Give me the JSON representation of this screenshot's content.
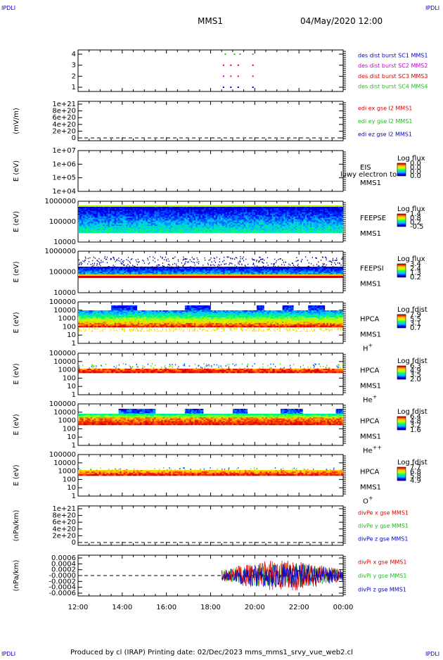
{
  "header": {
    "corner_tl": "IPDLI",
    "corner_tr": "IPDLI",
    "corner_bl": "IPDLI",
    "corner_br": "IPDLI",
    "spacecraft": "MMS1",
    "datetime": "04/May/2020 12:00"
  },
  "footer": {
    "text": "Produced by cl (IRAP)   Printing date: 02/Dec/2023   mms_mms1_srvy_vue_web2.cl"
  },
  "colors": {
    "blue": "#0000cc",
    "red": "#dd0000",
    "green": "#22bb22",
    "magenta": "#cc00cc"
  },
  "chart_data": [
    {
      "id": "burst",
      "type": "scatter",
      "xlim": [
        "12:00",
        "00:00"
      ],
      "ylim": [
        0.5,
        4.5
      ],
      "yticks": [
        "4",
        "3",
        "2",
        "1"
      ],
      "ylabel": "",
      "legend": [
        {
          "text": "des dist burst SC1 MMS1",
          "color": "#0000cc"
        },
        {
          "text": "des dist burst SC2 MMS2",
          "color": "#cc00cc"
        },
        {
          "text": "des dist burst SC3 MMS3",
          "color": "#dd0000"
        },
        {
          "text": "des dist burst SC4 MMS4",
          "color": "#22bb22"
        }
      ],
      "series": [
        {
          "level": 4,
          "color": "#22bb22",
          "x": [
            "18:40",
            "19:05",
            "19:20",
            "19:55"
          ]
        },
        {
          "level": 3,
          "color": "#dd0000",
          "x": [
            "18:35",
            "18:55",
            "19:15",
            "19:55"
          ]
        },
        {
          "level": 2,
          "color": "#cc00cc",
          "x": [
            "18:35",
            "18:55",
            "19:15",
            "19:55"
          ]
        },
        {
          "level": 1,
          "color": "#0000cc",
          "x": [
            "18:35",
            "18:55",
            "19:15",
            "19:55"
          ]
        }
      ]
    },
    {
      "id": "edi",
      "type": "line",
      "ylabel": "(mV/m)",
      "yticks": [
        "1e+21",
        "8e+20",
        "6e+20",
        "4e+20",
        "2e+20",
        "0"
      ],
      "legend": [
        {
          "text": "edi ex gse l2 MMS1",
          "color": "#dd0000"
        },
        {
          "text": "edi ey gse l2 MMS1",
          "color": "#22bb22"
        },
        {
          "text": "edi ez gse l2 MMS1",
          "color": "#0000cc"
        }
      ]
    },
    {
      "id": "eis",
      "type": "heatmap",
      "ylabel": "E (eV)",
      "yticks": [
        "1e+07",
        "1e+06",
        "1e+05",
        "1e+04"
      ],
      "instrument": "EIS",
      "spacecraft": "MMS1",
      "note": "lowy electron to",
      "cbar_title": "Log flux",
      "cbar_ticks": [
        "0.0",
        "0.0",
        "0.0",
        "0.0"
      ]
    },
    {
      "id": "feepse",
      "type": "heatmap",
      "ylabel": "E (eV)",
      "yticks": [
        "1000000",
        "100000",
        "10000"
      ],
      "instrument": "FEEPSE",
      "spacecraft": "MMS1",
      "cbar_title": "Log flux",
      "cbar_ticks": [
        "1.4",
        "0.8",
        "0.2",
        "-0.5"
      ]
    },
    {
      "id": "feepsi",
      "type": "heatmap",
      "ylabel": "E (eV)",
      "yticks": [
        "1000000",
        "100000",
        "10000"
      ],
      "instrument": "FEEPSI",
      "spacecraft": "MMS1",
      "cbar_title": "Log flux",
      "cbar_ticks": [
        "3.4",
        "2.4",
        "1.3",
        "0.2"
      ]
    },
    {
      "id": "hpca_h",
      "type": "heatmap",
      "ylabel": "E (eV)",
      "yticks": [
        "100000",
        "10000",
        "1000",
        "100",
        "10",
        "1"
      ],
      "instrument": "HPCA",
      "spacecraft": "MMS1",
      "species": "H",
      "charge": "+",
      "cbar_title": "Log fdist",
      "cbar_ticks": [
        "7.9",
        "5.5",
        "3.1",
        "0.7"
      ]
    },
    {
      "id": "hpca_he1",
      "type": "heatmap",
      "ylabel": "E (eV)",
      "yticks": [
        "100000",
        "10000",
        "1000",
        "100",
        "10",
        "1"
      ],
      "instrument": "HPCA",
      "spacecraft": "MMS1",
      "species": "He",
      "charge": "+",
      "cbar_title": "Log fdist",
      "cbar_ticks": [
        "6.3",
        "4.9",
        "3.5",
        "2.0"
      ]
    },
    {
      "id": "hpca_he2",
      "type": "heatmap",
      "ylabel": "E (eV)",
      "yticks": [
        "100000",
        "10000",
        "1000",
        "100",
        "10",
        "1"
      ],
      "instrument": "HPCA",
      "spacecraft": "MMS1",
      "species": "He",
      "charge": "++",
      "cbar_title": "Log fdist",
      "cbar_ticks": [
        "6.4",
        "4.8",
        "3.2",
        "1.6"
      ]
    },
    {
      "id": "hpca_o",
      "type": "heatmap",
      "ylabel": "E (eV)",
      "yticks": [
        "100000",
        "10000",
        "1000",
        "100",
        "10",
        "1"
      ],
      "instrument": "HPCA",
      "spacecraft": "MMS1",
      "species": "O",
      "charge": "+",
      "cbar_title": "Log fdist",
      "cbar_ticks": [
        "7.7",
        "6.8",
        "5.8",
        "4.9"
      ]
    },
    {
      "id": "divpe",
      "type": "line",
      "ylabel": "(nPa/km)",
      "yticks": [
        "1e+21",
        "8e+20",
        "6e+20",
        "4e+20",
        "2e+20",
        "0"
      ],
      "legend": [
        {
          "text": "divPe x gse MMS1",
          "color": "#dd0000"
        },
        {
          "text": "divPe y gse MMS1",
          "color": "#22bb22"
        },
        {
          "text": "divPe z gse MMS1",
          "color": "#0000cc"
        }
      ]
    },
    {
      "id": "divpi",
      "type": "line",
      "ylabel": "(nPa/km)",
      "yticks": [
        "0.0006",
        "0.0004",
        "0.0002",
        "-0.0000",
        "-0.0002",
        "-0.0004",
        "-0.0006"
      ],
      "data_start": "18:30",
      "data_end": "00:00",
      "legend": [
        {
          "text": "divPi x gse MMS1",
          "color": "#dd0000"
        },
        {
          "text": "divPi y gse MMS1",
          "color": "#22bb22"
        },
        {
          "text": "divPi z gse MMS1",
          "color": "#0000cc"
        }
      ]
    }
  ],
  "xaxis": {
    "ticks": [
      "12:00",
      "14:00",
      "16:00",
      "18:00",
      "20:00",
      "22:00",
      "00:00"
    ]
  }
}
